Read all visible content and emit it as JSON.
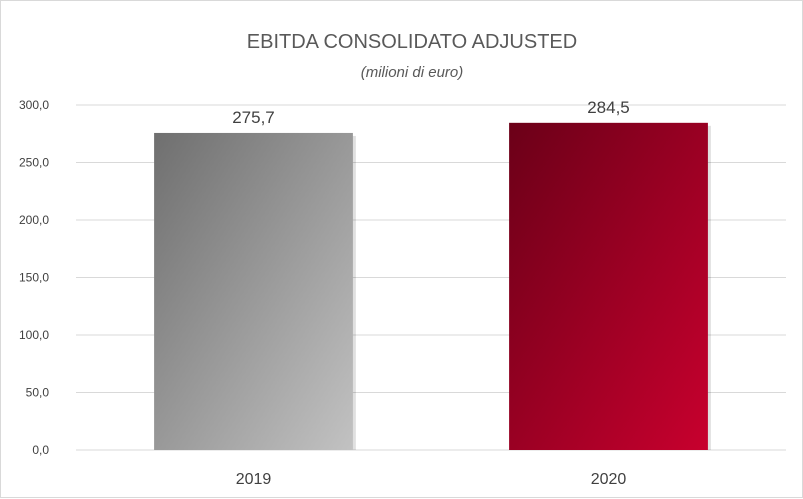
{
  "chart_data": {
    "type": "bar",
    "title": "EBITDA CONSOLIDATO ADJUSTED",
    "subtitle": "(milioni di euro)",
    "categories": [
      "2019",
      "2020"
    ],
    "values": [
      275.7,
      284.5
    ],
    "data_labels": [
      "275,7",
      "284,5"
    ],
    "ylim": [
      0,
      300
    ],
    "yticks": [
      0,
      50,
      100,
      150,
      200,
      250,
      300
    ],
    "ytick_labels": [
      "0,0",
      "50,0",
      "100,0",
      "150,0",
      "200,0",
      "250,0",
      "300,0"
    ],
    "grid": true,
    "legend": "none",
    "bar_colors": [
      {
        "from": "#6f6f6f",
        "to": "#c2c2c2"
      },
      {
        "from": "#6b0018",
        "to": "#c8002e"
      }
    ]
  }
}
